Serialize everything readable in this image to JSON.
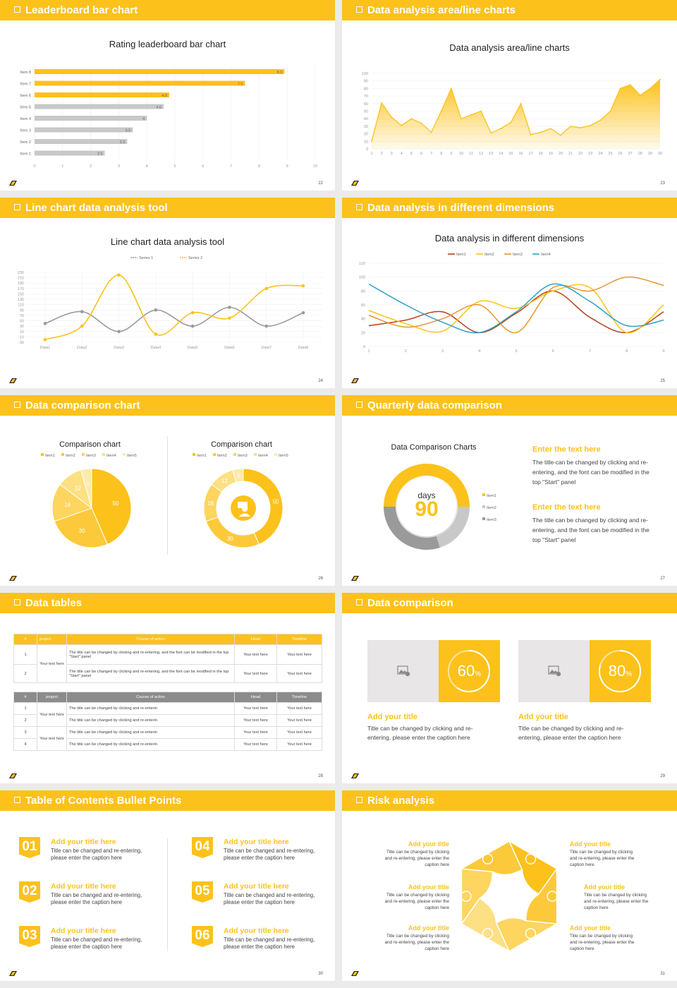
{
  "colors": {
    "yellow": "#fcc21b",
    "light": "#fde08a",
    "gray": "#c8c8c8",
    "dark": "#9a9a9a"
  },
  "s22": {
    "header": "Leaderboard bar chart",
    "title": "Rating leaderboard bar chart",
    "page": "22"
  },
  "s23": {
    "header": "Data analysis area/line charts",
    "title": "Data analysis area/line charts",
    "page": "23"
  },
  "s24": {
    "header": "Line chart data analysis tool",
    "title": "Line chart data analysis tool",
    "legend": [
      "Series 1",
      "Series 2"
    ],
    "page": "24"
  },
  "s25": {
    "header": "Data analysis in different dimensions",
    "title": "Data analysis in different dimensions",
    "legend": [
      "Item1",
      "Item2",
      "Item3",
      "Item4"
    ],
    "page": "25"
  },
  "s26": {
    "header": "Data comparison chart",
    "title_a": "Comparison chart",
    "title_b": "Comparison chart",
    "legend": [
      "Item1",
      "Item2",
      "Item3",
      "Item4",
      "Item5"
    ],
    "page": "26"
  },
  "s27": {
    "header": "Quarterly data comparison",
    "title": "Data Comparison Charts",
    "days": "days",
    "value": "90",
    "legend": [
      "Item1",
      "Item2",
      "Item3"
    ],
    "h1": "Enter the text here",
    "p1": "The title can be changed by clicking and re-entering, and the font can be modified in the top \"Start\" panel",
    "h2": "Enter the text here",
    "p2": "The title can be changed by clicking and re-entering, and the font can be modified in the top \"Start\" panel",
    "page": "27"
  },
  "s28": {
    "header": "Data tables",
    "t1_head": [
      "#",
      "project",
      "Course of action",
      "Head",
      "Timeline"
    ],
    "t1_project": "Your text here",
    "t1_rows": [
      [
        "1",
        "The title can be changed by clicking and re-entering, and the font can be modified in the top \"Start\" panel",
        "Your text here",
        "Your text here"
      ],
      [
        "2",
        "The title can be changed by clicking and re-entering, and the font can be modified in the top \"Start\" panel",
        "Your text here",
        "Your text here"
      ]
    ],
    "t2_head": [
      "#",
      "project",
      "Course of action",
      "Head",
      "Timeline"
    ],
    "t2_project": "Your text here",
    "t2_rows": [
      [
        "1",
        "The title can be changed by clicking and re-enterin",
        "Your text here",
        "Your text here"
      ],
      [
        "2",
        "The title can be changed by clicking and re-enterin",
        "Your text here",
        "Your text here"
      ],
      [
        "3",
        "The title can be changed by clicking and re-enterin",
        "Your text here",
        "Your text here"
      ],
      [
        "4",
        "The title can be changed by clicking and re-enterin",
        "Your text here",
        "Your text here"
      ]
    ],
    "page": "28"
  },
  "s29": {
    "header": "Data comparison",
    "p1": "60",
    "p2": "80",
    "unit": "%",
    "title1": "Add your title",
    "text1": "Title can be changed by clicking and re-entering, please enter the caption here",
    "title2": "Add your title",
    "text2": "Title can be changed by clicking and re-entering, please enter the caption here",
    "page": "29"
  },
  "s30": {
    "header": "Table of Contents Bullet Points",
    "items": [
      {
        "n": "01",
        "t": "Add your title here",
        "d": "Title can be changed and re-entering, please enter the caption here"
      },
      {
        "n": "02",
        "t": "Add your title here",
        "d": "Title can be changed and re-entering, please enter the caption here"
      },
      {
        "n": "03",
        "t": "Add your title here",
        "d": "Title can be changed and re-entering, please enter the caption here"
      },
      {
        "n": "04",
        "t": "Add your title here",
        "d": "Title can be changed and re-entering, please enter the caption here"
      },
      {
        "n": "05",
        "t": "Add your title here",
        "d": "Title can be changed and re-entering, please enter the caption here"
      },
      {
        "n": "06",
        "t": "Add your title here",
        "d": "Title can be changed and re-entering, please enter the caption here"
      }
    ],
    "page": "30"
  },
  "s31": {
    "header": "Risk analysis",
    "items": [
      {
        "t": "Add your title",
        "d": "Title can be changed by clicking and re-entering, please enter the caption here"
      },
      {
        "t": "Add your title",
        "d": "Title can be changed by clicking and re-entering, please enter the caption here"
      },
      {
        "t": "Add your title",
        "d": "Title can be changed by clicking and re-entering, please enter the caption here"
      },
      {
        "t": "Add your title",
        "d": "Title can be changed by clicking and re-entering, please enter the caption here"
      },
      {
        "t": "Add your title",
        "d": "Title can be changed by clicking and re-entering, please enter the caption here"
      },
      {
        "t": "Add your title",
        "d": "Title can be changed by clicking and re-entering, please enter the caption here"
      }
    ],
    "page": "31"
  },
  "chart_data": [
    {
      "type": "bar",
      "title": "Rating leaderboard bar chart",
      "categories": [
        "Item 8",
        "Item 7",
        "Item 6",
        "Item 5",
        "Item 4",
        "Item 3",
        "Item 2",
        "Item 1"
      ],
      "values": [
        8.9,
        7.5,
        4.8,
        4.6,
        4,
        3.5,
        3.3,
        2.5
      ],
      "highlighted": [
        "Item 8",
        "Item 7",
        "Item 6"
      ],
      "xlim": [
        0,
        10
      ],
      "xticks": [
        0,
        1,
        2,
        3,
        4,
        5,
        6,
        7,
        8,
        9,
        10
      ]
    },
    {
      "type": "area",
      "title": "Data analysis area/line charts",
      "x": [
        1,
        2,
        3,
        4,
        5,
        6,
        7,
        8,
        9,
        10,
        11,
        12,
        13,
        14,
        15,
        16,
        17,
        18,
        19,
        20,
        21,
        22,
        23,
        24,
        25,
        26,
        27,
        28,
        29,
        30
      ],
      "values": [
        10,
        61,
        42,
        31,
        40,
        34,
        22,
        50,
        80,
        40,
        45,
        50,
        21,
        27,
        35,
        60,
        19,
        22,
        27,
        18,
        30,
        28,
        31,
        38,
        50,
        80,
        85,
        71,
        80,
        92
      ],
      "ylim": [
        0,
        100
      ],
      "yticks": [
        0,
        10,
        20,
        30,
        40,
        50,
        60,
        70,
        80,
        90,
        100
      ]
    },
    {
      "type": "line",
      "title": "Line chart data analysis tool",
      "categories": [
        "Data1",
        "Data2",
        "Data3",
        "Data4",
        "Data5",
        "Data6",
        "Data7",
        "Data8"
      ],
      "series": [
        {
          "name": "Series 1",
          "values": [
            40,
            84,
            10,
            90,
            30,
            100,
            30,
            80
          ]
        },
        {
          "name": "Series 2",
          "values": [
            -20,
            30,
            220,
            0,
            80,
            60,
            170,
            180
          ]
        }
      ],
      "ylim": [
        -30,
        230
      ],
      "yticks": [
        -30,
        -10,
        10,
        30,
        50,
        70,
        90,
        110,
        130,
        150,
        170,
        190,
        210,
        230
      ]
    },
    {
      "type": "line",
      "title": "Data analysis in different dimensions",
      "x": [
        1,
        2,
        3,
        4,
        5,
        6,
        7,
        8,
        9
      ],
      "series": [
        {
          "name": "Item1",
          "values": [
            30,
            38,
            50,
            20,
            48,
            80,
            42,
            20,
            50
          ]
        },
        {
          "name": "Item2",
          "values": [
            52,
            33,
            22,
            65,
            55,
            80,
            85,
            20,
            60
          ]
        },
        {
          "name": "Item3",
          "values": [
            45,
            28,
            40,
            60,
            20,
            85,
            80,
            100,
            88
          ]
        },
        {
          "name": "Item4",
          "values": [
            90,
            60,
            35,
            20,
            50,
            90,
            65,
            30,
            38
          ]
        }
      ],
      "ylim": [
        0,
        120
      ],
      "yticks": [
        0,
        20,
        40,
        60,
        80,
        100,
        120
      ]
    },
    {
      "type": "pie",
      "title": "Comparison chart",
      "categories": [
        "Item1",
        "Item2",
        "Item3",
        "Item4",
        "Item5"
      ],
      "values": [
        50,
        30,
        18,
        12,
        5
      ]
    },
    {
      "type": "pie",
      "title": "Comparison chart",
      "donut": true,
      "categories": [
        "Item1",
        "Item2",
        "Item3",
        "Item4",
        "Item5"
      ],
      "values": [
        50,
        30,
        18,
        12,
        5
      ]
    },
    {
      "type": "pie",
      "title": "Data Comparison Charts",
      "donut": true,
      "categories": [
        "Item1",
        "Item2",
        "Item3"
      ],
      "values": [
        50,
        20,
        30
      ]
    }
  ]
}
